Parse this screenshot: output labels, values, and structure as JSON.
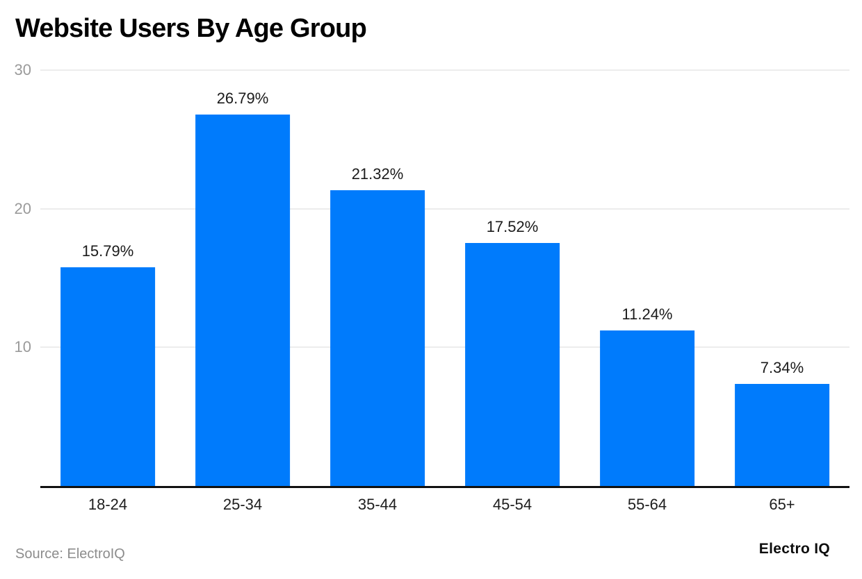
{
  "title": "Website Users By Age Group",
  "source": {
    "label": "Source: ElectroIQ"
  },
  "branding": {
    "logo": "Electro IQ"
  },
  "colors": {
    "bar": "#007bfc",
    "gridline": "#ececec",
    "axis_line": "#111111",
    "tick_label": "#9a9a9a",
    "text": "#1b1b1b",
    "source_text": "#8c8c8c"
  },
  "chart_data": {
    "type": "bar",
    "title": "Website Users By Age Group",
    "categories": [
      "18-24",
      "25-34",
      "35-44",
      "45-54",
      "55-64",
      "65+"
    ],
    "values": [
      15.79,
      26.79,
      21.32,
      17.52,
      11.24,
      7.34
    ],
    "value_labels": [
      "15.79%",
      "26.79%",
      "21.32%",
      "17.52%",
      "11.24%",
      "7.34%"
    ],
    "xlabel": "",
    "ylabel": "",
    "ylim": [
      0,
      30
    ],
    "yticks": [
      10,
      20,
      30
    ],
    "grid": true,
    "legend": false,
    "bar_color": "#007bfc"
  }
}
